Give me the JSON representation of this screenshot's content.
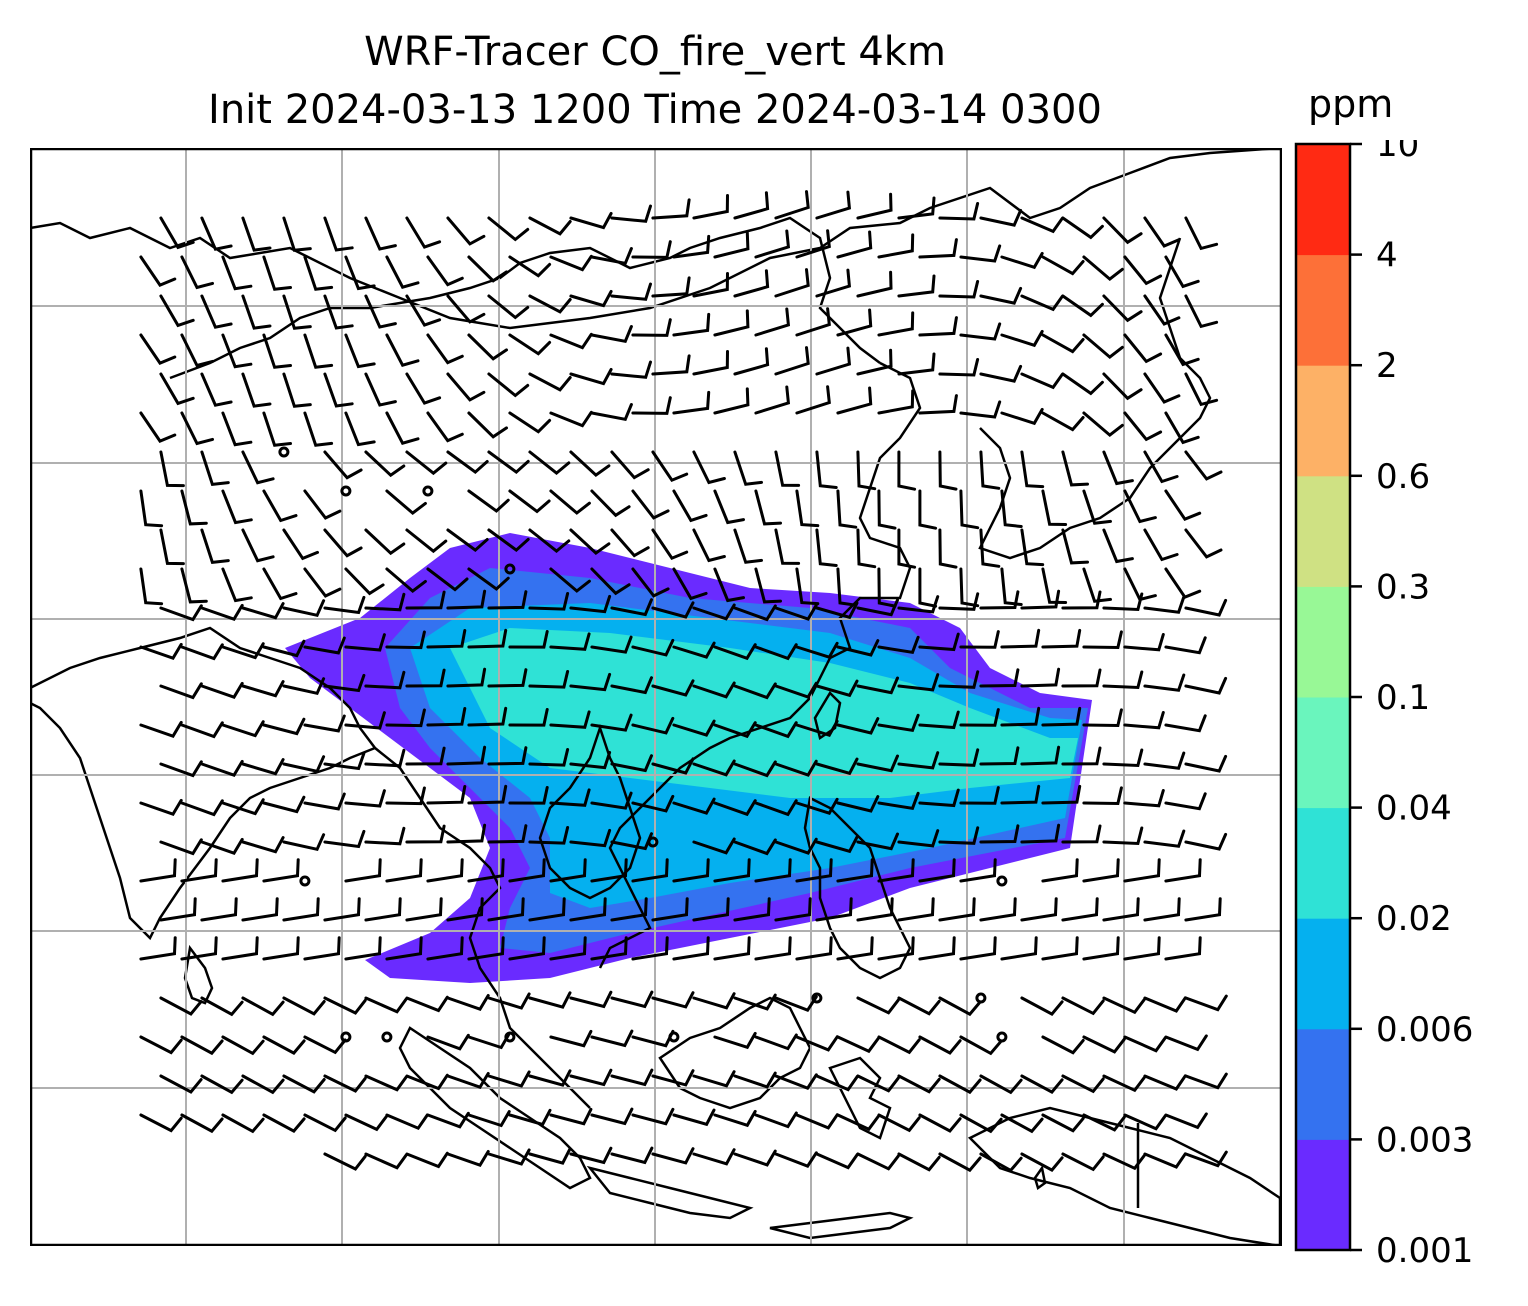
{
  "title": {
    "line1": "WRF-Tracer CO_fire_vert 4km",
    "line2": "Init 2024-03-13 1200 Time 2024-03-14 0300"
  },
  "colorbar": {
    "unit": "ppm",
    "ticks": [
      "0.001",
      "0.003",
      "0.006",
      "0.02",
      "0.04",
      "0.1",
      "0.3",
      "0.6",
      "2",
      "4",
      "10"
    ],
    "colors": [
      "#6a2bff",
      "#3472f0",
      "#05b0ef",
      "#2fe2d6",
      "#6af5bd",
      "#98f896",
      "#cfe183",
      "#fdb166",
      "#fd7038",
      "#ff2a13"
    ]
  },
  "map": {
    "gridlines": true,
    "coastline_color": "#000000",
    "barb_color": "#000000",
    "gridline_color": "#b0b0b0"
  }
}
